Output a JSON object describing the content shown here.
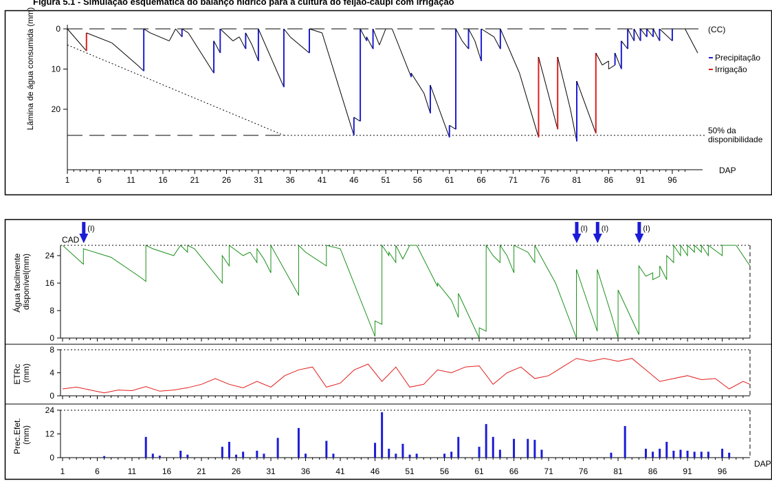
{
  "page_title": "Figura 5.1 - Simulação esquemática do balanço hídrico para a cultura do feijão-caupi com irrigação",
  "colors": {
    "precipitation": "#1c1cd6",
    "irrigation": "#e11b1b",
    "afd_line": "#1a8f1a",
    "etrc_line": "#e11b1b",
    "prec_bars": "#1c1cd6",
    "axis": "#000000"
  },
  "chart_data": [
    {
      "type": "line",
      "ylabel": "Lâmina de água consumida (mm)",
      "xlabel": "DAP",
      "xlim": [
        1,
        100
      ],
      "ylim": [
        0,
        32
      ],
      "y_inverted": true,
      "x_ticks": [
        1,
        6,
        11,
        16,
        21,
        26,
        31,
        36,
        41,
        46,
        51,
        56,
        61,
        66,
        71,
        76,
        81,
        86,
        91,
        96
      ],
      "y_ticks": [
        0,
        10,
        20
      ],
      "reference_lines": [
        {
          "label": "(CC)",
          "y": 0,
          "style": "dashed"
        },
        {
          "label": "50% da disponibilidade",
          "y": 26.5,
          "style": "dotted"
        }
      ],
      "legend": [
        {
          "label": "Precipitação",
          "color": "#1c1cd6"
        },
        {
          "label": "Irrigação",
          "color": "#e11b1b"
        }
      ],
      "legend_position": "right",
      "depletion_series": [
        [
          1,
          0
        ],
        [
          4,
          5.5
        ],
        [
          4,
          1
        ],
        [
          8,
          3.5
        ],
        [
          12,
          9
        ],
        [
          13,
          10.5
        ],
        [
          13,
          0
        ],
        [
          14,
          1
        ],
        [
          17,
          3
        ],
        [
          18,
          0
        ],
        [
          19,
          2
        ],
        [
          19,
          0
        ],
        [
          20,
          1
        ],
        [
          24,
          11
        ],
        [
          24,
          3
        ],
        [
          25,
          6
        ],
        [
          25,
          0
        ],
        [
          27,
          3
        ],
        [
          28,
          2
        ],
        [
          29,
          5
        ],
        [
          29,
          1
        ],
        [
          30,
          4
        ],
        [
          31,
          8
        ],
        [
          31,
          0
        ],
        [
          35,
          14.5
        ],
        [
          35,
          0
        ],
        [
          36,
          2
        ],
        [
          39,
          6
        ],
        [
          39,
          0
        ],
        [
          41,
          1
        ],
        [
          46,
          26.5
        ],
        [
          46,
          22
        ],
        [
          47,
          23
        ],
        [
          47,
          0
        ],
        [
          48,
          3
        ],
        [
          48,
          2
        ],
        [
          49,
          5
        ],
        [
          49,
          0
        ],
        [
          50,
          4
        ],
        [
          51,
          0
        ],
        [
          52,
          0
        ],
        [
          55,
          12
        ],
        [
          55,
          11
        ],
        [
          57,
          16
        ],
        [
          58,
          21
        ],
        [
          58,
          14
        ],
        [
          61,
          27
        ],
        [
          61,
          24
        ],
        [
          62,
          25
        ],
        [
          62,
          0
        ],
        [
          63,
          3
        ],
        [
          64,
          5
        ],
        [
          64,
          0
        ],
        [
          65,
          3
        ],
        [
          66,
          8
        ],
        [
          66,
          0
        ],
        [
          68,
          2
        ],
        [
          69,
          5
        ],
        [
          69,
          0
        ],
        [
          72,
          11
        ],
        [
          75,
          27
        ],
        [
          75,
          7
        ],
        [
          78,
          25
        ],
        [
          78,
          7
        ],
        [
          80,
          20
        ],
        [
          81,
          28
        ],
        [
          81,
          13
        ],
        [
          84,
          26
        ],
        [
          84,
          6
        ],
        [
          85,
          9
        ],
        [
          86,
          8
        ],
        [
          86,
          10
        ],
        [
          87,
          9
        ],
        [
          87,
          6
        ],
        [
          88,
          10
        ],
        [
          88,
          3
        ],
        [
          89,
          5
        ],
        [
          89,
          0
        ],
        [
          90,
          3
        ],
        [
          90,
          0
        ],
        [
          91,
          3
        ],
        [
          91,
          0
        ],
        [
          92,
          2
        ],
        [
          92,
          0
        ],
        [
          93,
          2
        ],
        [
          93,
          0
        ],
        [
          94,
          3
        ],
        [
          94,
          0
        ],
        [
          96,
          3
        ],
        [
          96,
          0
        ],
        [
          98,
          0
        ],
        [
          100,
          6
        ]
      ],
      "precipitation_events": [
        13,
        18,
        19,
        24,
        25,
        29,
        31,
        35,
        39,
        46,
        47,
        49,
        58,
        61,
        62,
        64,
        66,
        69,
        81,
        84,
        88,
        89,
        90,
        91,
        92,
        93,
        94,
        96
      ],
      "irrigation_events": [
        4,
        75,
        78,
        84
      ],
      "dotted_diagonal": [
        [
          1,
          4
        ],
        [
          35,
          26.5
        ]
      ]
    },
    {
      "type": "line",
      "ylabel": "Água facilmente disponível(mm)",
      "xlim": [
        1,
        100
      ],
      "ylim": [
        0,
        27
      ],
      "y_ticks": [
        0,
        8,
        16,
        24
      ],
      "cad_label": "CAD",
      "cad_value": 27,
      "irrigation_markers": [
        {
          "x": 4,
          "label": "(I)"
        },
        {
          "x": 75,
          "label": "(I)"
        },
        {
          "x": 78,
          "label": "(I)"
        },
        {
          "x": 84,
          "label": "(I)"
        }
      ]
    },
    {
      "type": "line",
      "ylabel": "ETRc (mm)",
      "xlim": [
        1,
        100
      ],
      "ylim": [
        0,
        8
      ],
      "y_ticks": [
        0,
        4,
        8
      ],
      "x": [
        1,
        3,
        5,
        7,
        9,
        11,
        13,
        15,
        17,
        19,
        21,
        23,
        25,
        27,
        29,
        31,
        33,
        35,
        37,
        39,
        41,
        43,
        45,
        47,
        49,
        51,
        53,
        55,
        57,
        59,
        61,
        63,
        65,
        67,
        69,
        71,
        73,
        75,
        77,
        79,
        81,
        83,
        85,
        87,
        89,
        91,
        93,
        95,
        97,
        99,
        100
      ],
      "values": [
        1.2,
        1.5,
        1.0,
        0.5,
        1.0,
        0.9,
        1.6,
        0.8,
        1.0,
        1.4,
        2.0,
        3.0,
        2.0,
        1.4,
        2.5,
        1.5,
        3.5,
        4.5,
        5.0,
        1.5,
        2.2,
        4.5,
        5.5,
        2.5,
        5.0,
        1.5,
        2.0,
        4.5,
        4.0,
        5.0,
        5.2,
        2.0,
        4.0,
        5.0,
        3.0,
        3.5,
        5.0,
        6.5,
        6.0,
        6.5,
        6.0,
        6.5,
        4.5,
        2.5,
        3.0,
        3.5,
        2.8,
        3.0,
        1.2,
        2.5,
        2.0
      ]
    },
    {
      "type": "bar",
      "ylabel": "Prec.Efet. (mm)",
      "xlabel": "DAP",
      "xlim": [
        1,
        100
      ],
      "ylim": [
        0,
        24
      ],
      "y_ticks": [
        0,
        12,
        24
      ],
      "x_ticks": [
        1,
        6,
        11,
        16,
        21,
        26,
        31,
        36,
        41,
        46,
        51,
        56,
        61,
        66,
        71,
        76,
        81,
        86,
        91,
        96
      ],
      "x": [
        7,
        13,
        14,
        15,
        18,
        19,
        24,
        25,
        26,
        27,
        29,
        30,
        32,
        35,
        36,
        39,
        40,
        46,
        47,
        48,
        49,
        50,
        51,
        52,
        56,
        57,
        58,
        61,
        62,
        63,
        64,
        66,
        68,
        69,
        70,
        80,
        82,
        85,
        86,
        87,
        88,
        89,
        90,
        91,
        92,
        93,
        94,
        96,
        97
      ],
      "values": [
        0.8,
        10.5,
        2,
        1,
        3.5,
        1.5,
        5.5,
        8,
        1.5,
        3,
        3.5,
        2,
        10,
        15,
        2,
        8.5,
        2,
        7.5,
        23,
        4.5,
        2,
        7,
        1.5,
        2,
        2,
        3,
        10.5,
        5.5,
        17,
        10.5,
        4,
        9.5,
        9.5,
        9,
        4,
        2.5,
        16,
        4.5,
        3,
        4.5,
        8,
        3.5,
        4,
        3.5,
        3,
        3,
        3,
        4.5,
        2.5
      ]
    }
  ]
}
